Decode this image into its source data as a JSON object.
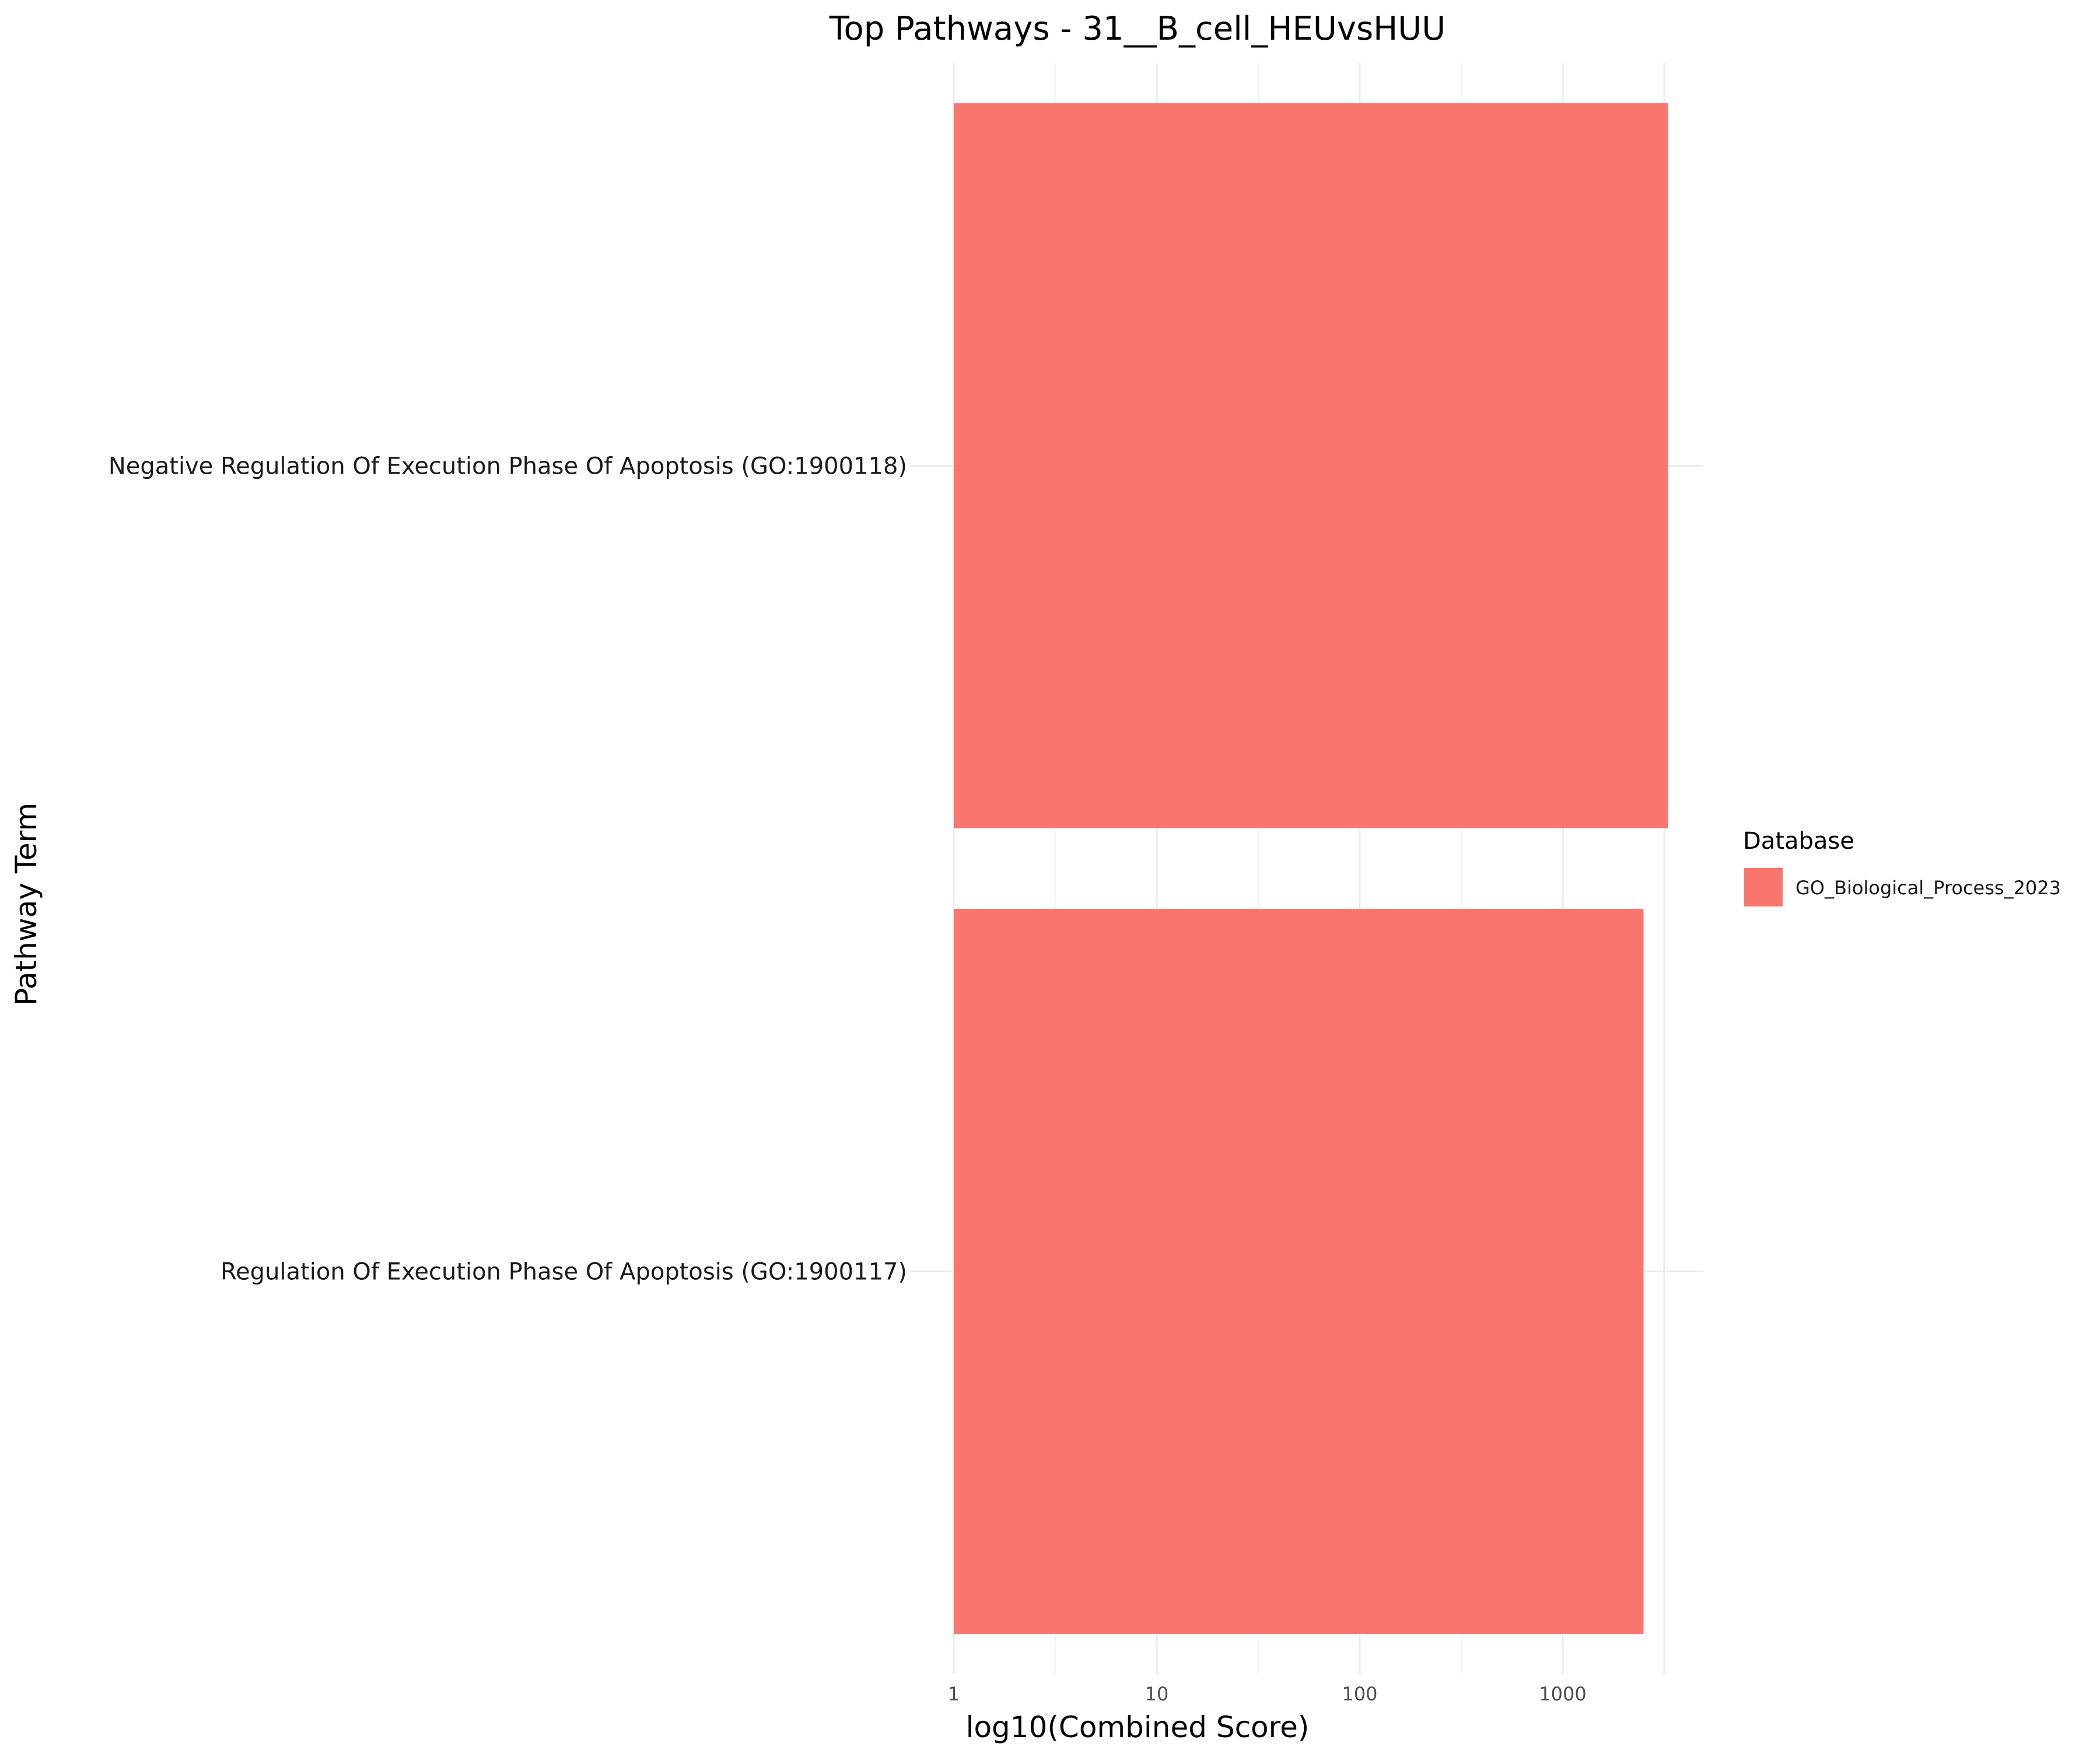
{
  "chart_data": {
    "type": "bar",
    "orientation": "horizontal",
    "title": "Top Pathways - 31__B_cell_HEUvsHUU",
    "xlabel": "log10(Combined Score)",
    "ylabel": "Pathway Term",
    "x_scale": "log10",
    "xlim": [
      1,
      4500
    ],
    "x_ticks": [
      1,
      10,
      100,
      1000
    ],
    "x_tick_labels": [
      "1",
      "10",
      "100",
      "1000"
    ],
    "grid": true,
    "categories": [
      "Negative Regulation Of Execution Phase Of Apoptosis (GO:1900118)",
      "Regulation Of Execution Phase Of Apoptosis (GO:1900117)"
    ],
    "series": [
      {
        "name": "GO_Biological_Process_2023",
        "color": "#F8766D",
        "values": [
          3300,
          2500
        ]
      }
    ],
    "legend": {
      "title": "Database",
      "position": "right",
      "entries": [
        "GO_Biological_Process_2023"
      ]
    }
  }
}
